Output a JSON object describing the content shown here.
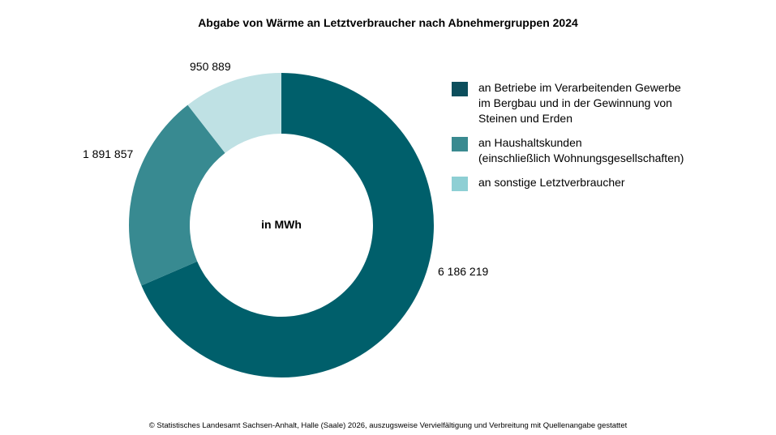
{
  "title": "Abgabe von Wärme an Letztverbraucher nach Abnehmergruppen 2024",
  "footer": "© Statistisches Landesamt Sachsen-Anhalt, Halle (Saale) 2026, auszugsweise Vervielfältigung und Verbreitung mit Quellenangabe gestattet",
  "chart_data": {
    "type": "pie",
    "donut": true,
    "title": "Abgabe von Wärme an Letztverbraucher nach Abnehmergruppen 2024",
    "center_label": "in MWh",
    "legend_position": "right",
    "categories": [
      "an Betriebe im Verarbeitenden Gewerbe im Bergbau und in der Gewinnung von Steinen und Erden",
      "an Haushaltskunden (einschließlich Wohnungsgesellschaften)",
      "an sonstige Letztverbraucher"
    ],
    "legend_lines": [
      [
        "an Betriebe im Verarbeitenden Gewerbe",
        "im Bergbau und in der Gewinnung von",
        "Steinen und Erden"
      ],
      [
        "an Haushaltskunden",
        "(einschließlich Wohnungsgesellschaften)"
      ],
      [
        "an sonstige Letztverbraucher"
      ]
    ],
    "values": [
      6186219,
      1891857,
      950889
    ],
    "value_labels": [
      "6 186 219",
      "1 891 857",
      "950 889"
    ],
    "colors": [
      "#005f6b",
      "#388a91",
      "#bfe1e4"
    ],
    "legend_colors": [
      "#0c4e5c",
      "#3a8a90",
      "#8ecfd4"
    ]
  }
}
